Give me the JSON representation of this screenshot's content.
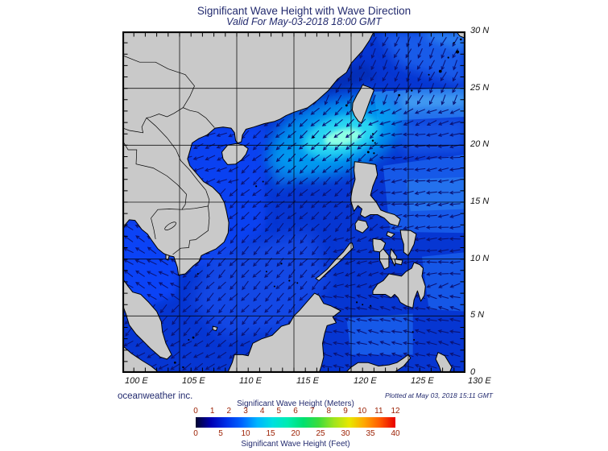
{
  "title": "Significant Wave Height with Wave Direction",
  "subtitle": "Valid For May-03-2018 18:00 GMT",
  "credit": "oceanweather inc.",
  "plotted_note": "Plotted at May 03, 2018 15:11 GMT",
  "axes": {
    "lon_ticks": [
      "100 E",
      "105 E",
      "110 E",
      "115 E",
      "120 E",
      "125 E",
      "130 E"
    ],
    "lat_ticks": [
      "30 N",
      "25 N",
      "20 N",
      "15 N",
      "10 N",
      "5 N",
      "0"
    ]
  },
  "colorbar": {
    "label_meters": "Significant Wave Height (Meters)",
    "label_feet": "Significant Wave Height (Feet)",
    "meter_ticks": [
      0,
      1,
      2,
      3,
      4,
      5,
      6,
      7,
      8,
      9,
      10,
      11,
      12
    ],
    "feet_ticks": [
      0,
      5,
      10,
      15,
      20,
      25,
      30,
      35,
      40
    ],
    "tick_color": "#9b1e00",
    "label_color": "#232b6f",
    "gradient": [
      "#03052e",
      "#0000b4",
      "#0030e8",
      "#0064ff",
      "#00b4ff",
      "#00e0e0",
      "#00ecb0",
      "#00e070",
      "#3cdc3c",
      "#a0e41e",
      "#e8e800",
      "#ffa500",
      "#ff5a00",
      "#e80000"
    ]
  },
  "map": {
    "land_color": "#c9c9c9",
    "coast_color": "#000000",
    "grid_color": "#000000",
    "arrow_color": "#0a1274",
    "sea_base": "#0636d2",
    "sea_bright": "#0a46ff",
    "sea_band_light": "#1b62ee",
    "sea_band_lighter": "#2e86f2",
    "sea_band_lightest": "#55b4f6",
    "sea_cyan_outer": "#00a2f2",
    "sea_cyan_mid": "#2ad8f2",
    "sea_cyan_core": "#8cffe4",
    "sea_dark_coast": "#04259c"
  },
  "chart_data": {
    "type": "heatmap",
    "title": "Significant Wave Height with Wave Direction",
    "subtitle": "Valid For May-03-2018 18:00 GMT",
    "region": {
      "lon_range_deg_e": [
        100,
        130
      ],
      "lat_range_deg_n": [
        0,
        30
      ],
      "grid_interval_deg": 5
    },
    "colorbar_meters": {
      "min": 0,
      "max": 12,
      "ticks": [
        0,
        1,
        2,
        3,
        4,
        5,
        6,
        7,
        8,
        9,
        10,
        11,
        12
      ]
    },
    "colorbar_feet": {
      "min": 0,
      "max": 40,
      "ticks": [
        0,
        5,
        10,
        15,
        20,
        25,
        30,
        35,
        40
      ]
    },
    "features": [
      {
        "area": "Luzon Strait / NE South China Sea (~118-121E, 20-21N)",
        "approx_height_m": 3.5,
        "wave_direction_toward": "southwest"
      },
      {
        "area": "South China Sea central",
        "approx_height_m": 1.5,
        "wave_direction_toward": "southwest"
      },
      {
        "area": "Gulf of Thailand",
        "approx_height_m": 1.0,
        "wave_direction_toward": "northwest"
      },
      {
        "area": "East China Sea",
        "approx_height_m": 1.5,
        "wave_direction_toward": "south-southwest"
      },
      {
        "area": "Philippine Sea",
        "approx_height_m": 1.5,
        "wave_direction_toward": "west"
      },
      {
        "area": "Celebes Sea",
        "approx_height_m": 1.2,
        "wave_direction_toward": "west-northwest"
      }
    ]
  }
}
